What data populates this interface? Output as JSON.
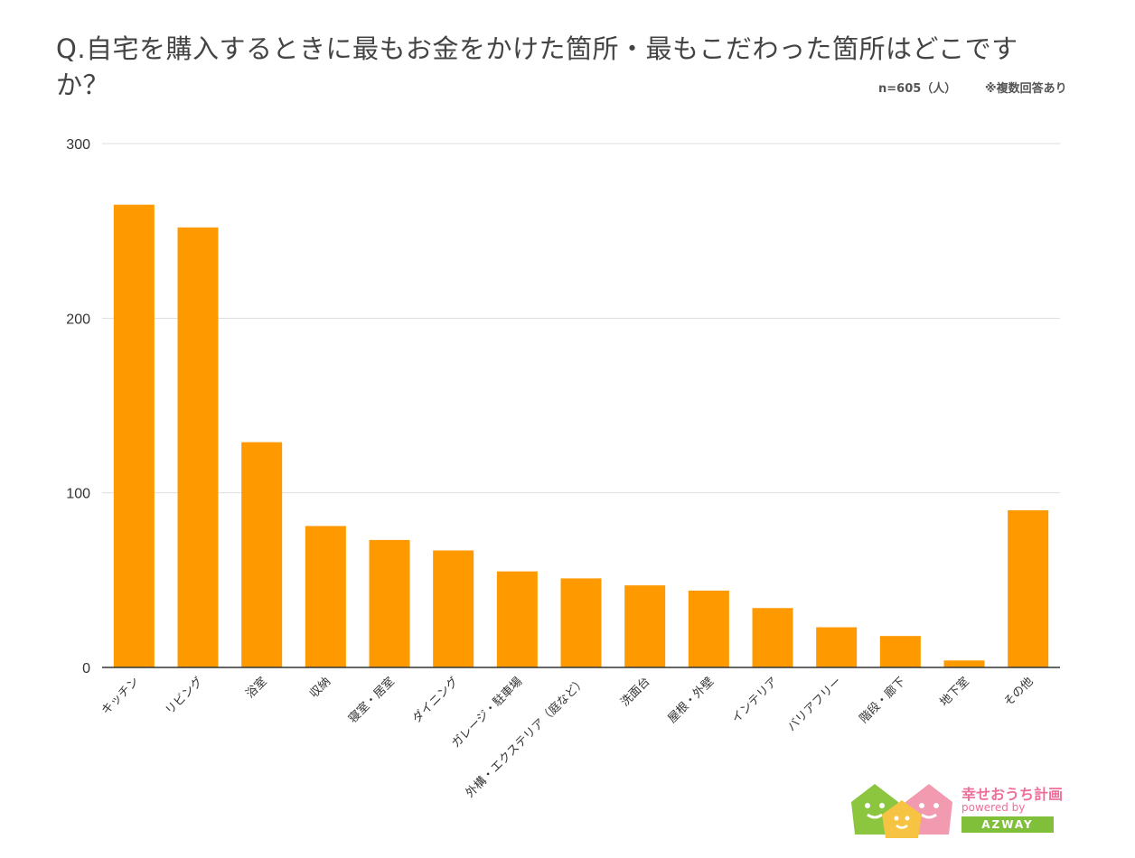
{
  "title": "Q.自宅を購入するときに最もお金をかけた箇所・最もこだわった箇所はどこですか？",
  "sample_note": "n=605（人）",
  "multi_note": "※複数回答あり",
  "colors": {
    "bar": "#ff9900",
    "grid": "#dddddd",
    "axis": "#333333",
    "text": "#333333"
  },
  "chart_data": {
    "type": "bar",
    "categories": [
      "キッチン",
      "リビング",
      "浴室",
      "収納",
      "寝室・居室",
      "ダイニング",
      "ガレージ・駐車場",
      "外構・エクステリア（庭など）",
      "洗面台",
      "屋根・外壁",
      "インテリア",
      "バリアフリー",
      "階段・廊下",
      "地下室",
      "その他"
    ],
    "values": [
      265,
      252,
      129,
      81,
      73,
      67,
      55,
      51,
      47,
      44,
      34,
      23,
      18,
      4,
      90
    ],
    "yticks": [
      0,
      100,
      200,
      300
    ],
    "ylim": [
      0,
      300
    ],
    "grid": true,
    "legend": "none"
  },
  "logo": {
    "title": "幸せおうち計画",
    "powered": "powered by",
    "brand": "AZWAY"
  }
}
